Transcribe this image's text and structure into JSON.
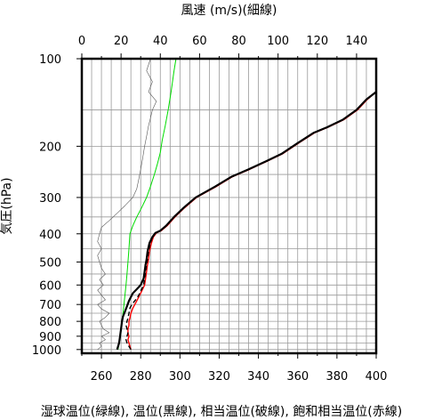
{
  "chart_data": {
    "type": "line",
    "top_axis": {
      "label": "風速 (m/s)(細線)",
      "range": [
        0,
        150
      ],
      "ticks": [
        0,
        20,
        40,
        60,
        80,
        100,
        120,
        140
      ]
    },
    "bottom_axis": {
      "label": "湿球温位(緑線), 温位(黒線), 相当温位(破線), 飽和相当温位(赤線)",
      "range": [
        250,
        400
      ],
      "ticks": [
        260,
        280,
        300,
        320,
        340,
        360,
        380,
        400
      ]
    },
    "y_axis": {
      "label": "気圧(hPa)",
      "scale": "log",
      "reversed": true,
      "range": [
        1030,
        100
      ],
      "ticks": [
        100,
        200,
        300,
        400,
        500,
        600,
        700,
        800,
        900,
        1000
      ],
      "grid_levels": [
        100,
        150,
        200,
        250,
        300,
        350,
        400,
        450,
        500,
        550,
        600,
        650,
        700,
        750,
        800,
        850,
        900,
        950,
        1000
      ]
    },
    "grid": true,
    "series": [
      {
        "name": "湿球温位",
        "color": "#00dd00",
        "style": "solid",
        "axis": "bottom",
        "points": [
          [
            268.5,
            1000
          ],
          [
            269,
            950
          ],
          [
            269.5,
            900
          ],
          [
            270,
            850
          ],
          [
            270.5,
            800
          ],
          [
            271,
            750
          ],
          [
            271.5,
            700
          ],
          [
            272,
            650
          ],
          [
            272.5,
            600
          ],
          [
            273,
            550
          ],
          [
            273.5,
            500
          ],
          [
            274,
            450
          ],
          [
            274.5,
            400
          ],
          [
            276,
            375
          ],
          [
            278,
            350
          ],
          [
            280.5,
            325
          ],
          [
            283,
            300
          ],
          [
            285,
            275
          ],
          [
            287,
            250
          ],
          [
            288.5,
            230
          ],
          [
            290,
            210
          ],
          [
            291,
            190
          ],
          [
            292.5,
            170
          ],
          [
            294,
            150
          ],
          [
            295.5,
            130
          ],
          [
            297,
            110
          ],
          [
            298,
            100
          ]
        ]
      },
      {
        "name": "温位",
        "color": "#000000",
        "style": "solid",
        "axis": "bottom",
        "points": [
          [
            268,
            1000
          ],
          [
            269,
            950
          ],
          [
            269.5,
            900
          ],
          [
            270,
            850
          ],
          [
            270.5,
            800
          ],
          [
            271,
            770
          ],
          [
            272,
            740
          ],
          [
            273,
            710
          ],
          [
            274,
            680
          ],
          [
            275,
            660
          ],
          [
            276,
            640
          ],
          [
            278,
            620
          ],
          [
            280,
            600
          ],
          [
            281.5,
            570
          ],
          [
            282,
            540
          ],
          [
            282.5,
            510
          ],
          [
            283,
            490
          ],
          [
            283.5,
            460
          ],
          [
            284.5,
            430
          ],
          [
            286,
            410
          ],
          [
            287.5,
            397
          ],
          [
            290,
            390
          ],
          [
            293,
            375
          ],
          [
            297,
            350
          ],
          [
            302,
            325
          ],
          [
            308,
            300
          ],
          [
            318,
            275
          ],
          [
            326,
            255
          ],
          [
            335,
            240
          ],
          [
            344,
            225
          ],
          [
            352,
            212
          ],
          [
            360,
            195
          ],
          [
            368,
            180
          ],
          [
            375,
            172
          ],
          [
            383,
            162
          ],
          [
            390,
            150
          ],
          [
            395,
            138
          ],
          [
            400,
            130
          ]
        ]
      },
      {
        "name": "相当温位",
        "color": "#000000",
        "style": "dashed",
        "axis": "bottom",
        "points": [
          [
            275,
            1000
          ],
          [
            274,
            975
          ],
          [
            273,
            950
          ],
          [
            272.5,
            925
          ],
          [
            273,
            900
          ],
          [
            273.5,
            875
          ],
          [
            273,
            850
          ],
          [
            272.5,
            825
          ],
          [
            273,
            800
          ],
          [
            273.5,
            780
          ],
          [
            274,
            750
          ],
          [
            274.5,
            720
          ],
          [
            275.5,
            700
          ],
          [
            277,
            680
          ],
          [
            278.5,
            660
          ],
          [
            279.5,
            640
          ],
          [
            280.5,
            620
          ],
          [
            281.5,
            600
          ],
          [
            282,
            570
          ],
          [
            282.5,
            540
          ],
          [
            283,
            510
          ],
          [
            283.5,
            490
          ],
          [
            284,
            460
          ],
          [
            285,
            430
          ],
          [
            286,
            410
          ],
          [
            287.5,
            397
          ],
          [
            290,
            390
          ],
          [
            293,
            375
          ],
          [
            297,
            350
          ],
          [
            302,
            325
          ],
          [
            308,
            300
          ],
          [
            318,
            275
          ],
          [
            326,
            255
          ],
          [
            335,
            240
          ],
          [
            344,
            225
          ],
          [
            352,
            212
          ],
          [
            360,
            195
          ],
          [
            368,
            180
          ],
          [
            375,
            172
          ],
          [
            383,
            162
          ],
          [
            390,
            150
          ],
          [
            395,
            138
          ],
          [
            400,
            130
          ]
        ]
      },
      {
        "name": "飽和相当温位",
        "color": "#ff0000",
        "style": "solid",
        "axis": "bottom",
        "points": [
          [
            275,
            1000
          ],
          [
            274.5,
            975
          ],
          [
            274,
            950
          ],
          [
            273.5,
            925
          ],
          [
            274,
            900
          ],
          [
            273.5,
            875
          ],
          [
            273.5,
            850
          ],
          [
            274,
            825
          ],
          [
            274,
            800
          ],
          [
            274.5,
            780
          ],
          [
            275,
            750
          ],
          [
            276,
            720
          ],
          [
            277,
            700
          ],
          [
            278,
            680
          ],
          [
            279,
            660
          ],
          [
            280,
            640
          ],
          [
            281,
            620
          ],
          [
            282,
            600
          ],
          [
            282.5,
            570
          ],
          [
            283,
            540
          ],
          [
            283.5,
            510
          ],
          [
            284,
            490
          ],
          [
            284.5,
            460
          ],
          [
            285.5,
            430
          ],
          [
            286.5,
            410
          ],
          [
            288,
            397
          ],
          [
            290.5,
            390
          ],
          [
            293.5,
            375
          ],
          [
            297.5,
            350
          ],
          [
            302.5,
            325
          ],
          [
            308.5,
            300
          ],
          [
            318.5,
            275
          ],
          [
            326.5,
            255
          ],
          [
            335.5,
            240
          ],
          [
            344.5,
            225
          ],
          [
            352.5,
            212
          ],
          [
            360.5,
            195
          ],
          [
            368.5,
            180
          ],
          [
            375.5,
            172
          ],
          [
            383.5,
            162
          ],
          [
            390.5,
            150
          ],
          [
            395.5,
            138
          ],
          [
            400,
            130
          ]
        ]
      },
      {
        "name": "風速",
        "color": "#555555",
        "style": "solid",
        "axis": "top",
        "points": [
          [
            8,
            1000
          ],
          [
            10,
            975
          ],
          [
            9,
            950
          ],
          [
            12,
            925
          ],
          [
            10,
            900
          ],
          [
            14,
            875
          ],
          [
            11,
            850
          ],
          [
            10,
            825
          ],
          [
            9,
            800
          ],
          [
            12,
            775
          ],
          [
            14,
            750
          ],
          [
            10,
            725
          ],
          [
            8,
            700
          ],
          [
            12,
            675
          ],
          [
            10,
            650
          ],
          [
            8,
            625
          ],
          [
            11,
            600
          ],
          [
            9,
            575
          ],
          [
            12,
            550
          ],
          [
            10,
            525
          ],
          [
            9,
            500
          ],
          [
            8,
            475
          ],
          [
            10,
            450
          ],
          [
            8,
            425
          ],
          [
            9,
            400
          ],
          [
            10,
            380
          ],
          [
            14,
            360
          ],
          [
            18,
            340
          ],
          [
            22,
            320
          ],
          [
            26,
            300
          ],
          [
            28,
            280
          ],
          [
            29,
            260
          ],
          [
            30,
            240
          ],
          [
            31,
            220
          ],
          [
            32,
            200
          ],
          [
            33,
            185
          ],
          [
            34,
            170
          ],
          [
            35,
            160
          ],
          [
            36,
            150
          ],
          [
            38,
            140
          ],
          [
            34,
            130
          ],
          [
            36,
            120
          ],
          [
            33,
            110
          ],
          [
            35,
            100
          ]
        ]
      }
    ]
  }
}
